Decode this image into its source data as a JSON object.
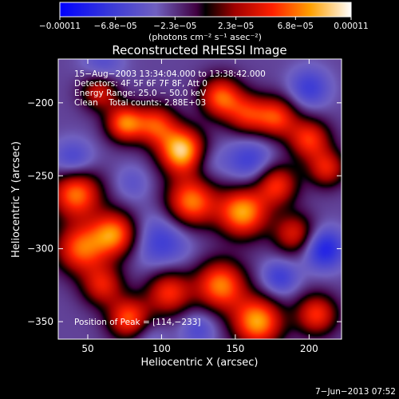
{
  "chart_data": {
    "type": "heatmap",
    "title": "Reconstructed RHESSI Image",
    "xlabel": "Heliocentric X (arcsec)",
    "ylabel": "Heliocentric Y (arcsec)",
    "xlim": [
      30,
      222
    ],
    "ylim": [
      -362,
      -170
    ],
    "x_ticks": [
      50,
      100,
      150,
      200
    ],
    "y_ticks": [
      -200,
      -250,
      -300,
      -350
    ],
    "colorbar": {
      "min": -0.00011,
      "max": 0.00011,
      "tick_values": [
        -0.00011,
        -6.8e-05,
        -2.3e-05,
        2.3e-05,
        6.8e-05,
        0.00011
      ],
      "tick_labels": [
        "−0.00011",
        "−6.8e−05",
        "−2.3e−05",
        "2.3e−05",
        "6.8e−05",
        "0.00011"
      ],
      "unit_label": "(photons cm⁻² s⁻¹ asec⁻²)"
    },
    "annotations": [
      "15−Aug−2003 13:34:04.000 to 13:38:42.000",
      "Detectors: 4F 5F 6F 7F 8F, Att 0",
      "Energy Range: 25.0 − 50.0 keV",
      "Clean    Total counts: 2.88E+03"
    ],
    "peak_label": "Position of Peak = [114,−233]",
    "peak": {
      "x": 114,
      "y": -233,
      "value": 0.00011
    },
    "features": [
      {
        "x": 114,
        "y": -233,
        "sigma": 11,
        "value": 0.000115
      },
      {
        "x": 96,
        "y": -215,
        "sigma": 10,
        "value": 7e-05
      },
      {
        "x": 75,
        "y": -214,
        "sigma": 9,
        "value": 8.5e-05
      },
      {
        "x": 58,
        "y": -192,
        "sigma": 9,
        "value": 6e-05
      },
      {
        "x": 140,
        "y": -196,
        "sigma": 10,
        "value": 8e-05
      },
      {
        "x": 158,
        "y": -208,
        "sigma": 10,
        "value": 6e-05
      },
      {
        "x": 178,
        "y": -210,
        "sigma": 10,
        "value": 7e-05
      },
      {
        "x": 200,
        "y": -225,
        "sigma": 10,
        "value": 7e-05
      },
      {
        "x": 212,
        "y": -245,
        "sigma": 9,
        "value": 6e-05
      },
      {
        "x": 120,
        "y": -268,
        "sigma": 12,
        "value": 9e-05
      },
      {
        "x": 155,
        "y": -275,
        "sigma": 12,
        "value": 0.0001
      },
      {
        "x": 178,
        "y": -256,
        "sigma": 10,
        "value": 7e-05
      },
      {
        "x": 190,
        "y": -290,
        "sigma": 10,
        "value": 6e-05
      },
      {
        "x": 42,
        "y": -262,
        "sigma": 12,
        "value": 9e-05
      },
      {
        "x": 45,
        "y": -300,
        "sigma": 12,
        "value": 8e-05
      },
      {
        "x": 68,
        "y": -290,
        "sigma": 11,
        "value": 9e-05
      },
      {
        "x": 60,
        "y": -325,
        "sigma": 10,
        "value": 6e-05
      },
      {
        "x": 78,
        "y": -348,
        "sigma": 10,
        "value": 8e-05
      },
      {
        "x": 105,
        "y": -330,
        "sigma": 11,
        "value": 7e-05
      },
      {
        "x": 140,
        "y": -325,
        "sigma": 12,
        "value": 9e-05
      },
      {
        "x": 165,
        "y": -350,
        "sigma": 12,
        "value": 0.0001
      },
      {
        "x": 205,
        "y": -345,
        "sigma": 10,
        "value": 7e-05
      },
      {
        "x": 40,
        "y": -240,
        "sigma": 10,
        "value": -5e-05
      },
      {
        "x": 60,
        "y": -175,
        "sigma": 10,
        "value": -4e-05
      },
      {
        "x": 100,
        "y": -295,
        "sigma": 14,
        "value": -5e-05
      },
      {
        "x": 130,
        "y": -240,
        "sigma": 9,
        "value": -3e-05
      },
      {
        "x": 160,
        "y": -240,
        "sigma": 12,
        "value": -5e-05
      },
      {
        "x": 200,
        "y": -190,
        "sigma": 10,
        "value": -5e-05
      },
      {
        "x": 210,
        "y": -300,
        "sigma": 10,
        "value": -7e-05
      },
      {
        "x": 180,
        "y": -320,
        "sigma": 9,
        "value": -5e-05
      },
      {
        "x": 125,
        "y": -355,
        "sigma": 9,
        "value": -4e-05
      },
      {
        "x": 90,
        "y": -360,
        "sigma": 9,
        "value": -3e-05
      },
      {
        "x": 80,
        "y": -255,
        "sigma": 9,
        "value": -3e-05
      }
    ]
  },
  "footer": {
    "date": "7−Jun−2013 07:52"
  }
}
